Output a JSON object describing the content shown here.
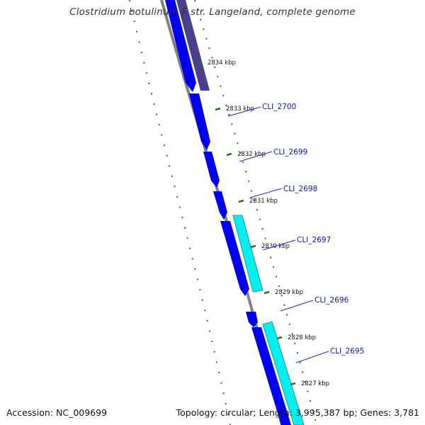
{
  "title": "Clostridium botulinum F str. Langeland, complete genome",
  "accession": "Accession: NC_009699",
  "stats": "Topology: circular; Length: 3,995,387 bp; Genes: 3,781",
  "colors": {
    "backbone": "#808080",
    "forward_cds": "#0000ee",
    "reverse_cds_dark": "#4a3f8c",
    "reverse_cds_cyan": "#00f0f0",
    "ticks": "#1a7a1a",
    "label_line": "#2020d0"
  },
  "ticks": [
    {
      "label": "2834 kbp"
    },
    {
      "label": "2833 kbp"
    },
    {
      "label": "2832 kbp"
    },
    {
      "label": "2831 kbp"
    },
    {
      "label": "2830 kbp"
    },
    {
      "label": "2829 kbp"
    },
    {
      "label": "2828 kbp"
    },
    {
      "label": "2827 kbp"
    }
  ],
  "genes": [
    {
      "label": "CLI_2700"
    },
    {
      "label": "CLI_2699"
    },
    {
      "label": "CLI_2698"
    },
    {
      "label": "CLI_2697"
    },
    {
      "label": "CLI_2696"
    },
    {
      "label": "CLI_2695"
    }
  ]
}
